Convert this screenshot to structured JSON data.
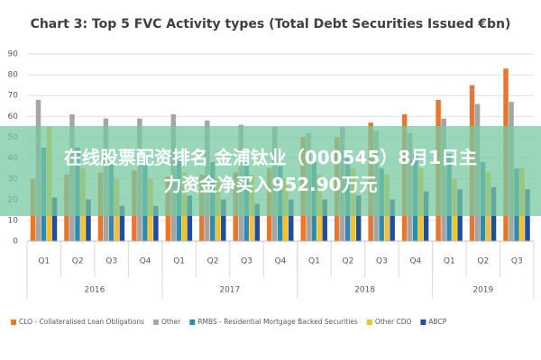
{
  "chart_data": {
    "type": "bar",
    "title": "Chart 3: Top 5 FVC Activity types (Total Debt Securities Issued €bn)",
    "categories": [
      "Q1",
      "Q2",
      "Q3",
      "Q4",
      "Q1",
      "Q2",
      "Q3",
      "Q4",
      "Q1",
      "Q2",
      "Q3",
      "Q4",
      "Q1",
      "Q2",
      "Q3"
    ],
    "years": [
      "2016",
      "2017",
      "2018",
      "2019"
    ],
    "series": [
      {
        "name": "CLO - Collateralised Loan Obligations",
        "color": "#e8772e",
        "values": [
          30,
          32,
          33,
          34,
          31,
          32,
          33,
          35,
          50,
          50,
          57,
          61,
          68,
          75,
          83
        ]
      },
      {
        "name": "Other",
        "color": "#a5a5a5",
        "values": [
          68,
          61,
          59,
          59,
          61,
          58,
          56,
          55,
          52,
          55,
          53,
          52,
          59,
          66,
          67
        ]
      },
      {
        "name": "RMBS - Residential Mortgage Backed Securities",
        "color": "#2e8bb0",
        "values": [
          45,
          45,
          38,
          40,
          40,
          38,
          38,
          36,
          38,
          40,
          35,
          42,
          42,
          38,
          35
        ]
      },
      {
        "name": "Other CDO",
        "color": "#f2c12e",
        "values": [
          55,
          35,
          30,
          30,
          33,
          30,
          32,
          30,
          32,
          35,
          32,
          35,
          30,
          33,
          35
        ]
      },
      {
        "name": "ABCP",
        "color": "#1f4e9c",
        "values": [
          21,
          20,
          17,
          17,
          22,
          20,
          18,
          20,
          20,
          22,
          20,
          24,
          25,
          26,
          25
        ]
      }
    ],
    "ylim": [
      0,
      90
    ],
    "yticks": [
      0,
      10,
      20,
      30,
      40,
      50,
      60,
      70,
      80,
      90
    ],
    "grid": true,
    "legend": "bottom"
  },
  "banner": {
    "lines": [
      "在线股票配资排名 金浦钛业（000545）8月1日主",
      "力资金净买入952.90万元"
    ]
  }
}
